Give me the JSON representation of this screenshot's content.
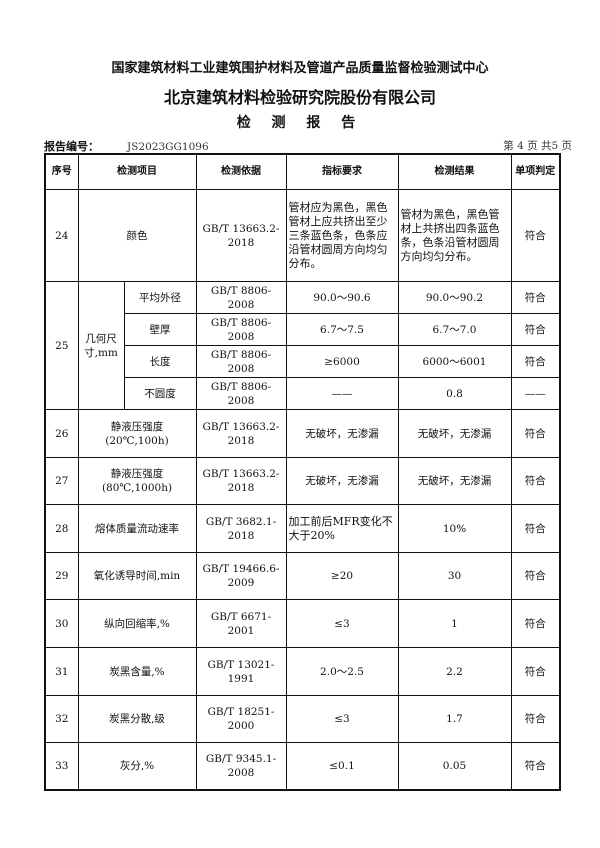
{
  "header": {
    "org": "国家建筑材料工业建筑围护材料及管道产品质量监督检验测试中心",
    "company": "北京建筑材料检验研究院股份有限公司",
    "doc_title": "检 测 报 告",
    "report_label": "报告编号：",
    "report_no": "JS2023GG1096",
    "page_info": "第 4 页 共5 页"
  },
  "columns": [
    "序号",
    "检测项目",
    "检测依据",
    "指标要求",
    "检测结果",
    "单项判定"
  ],
  "rows": [
    {
      "no": "24",
      "item": "颜色",
      "basis": "GB/T 13663.2-2018",
      "req": "管材应为黑色，黑色管材上应共挤出至少三条蓝色条，色条应沿管材圆周方向均匀分布。",
      "result": "管材为黑色，黑色管材上共挤出四条蓝色条，色条沿管材圆周方向均匀分布。",
      "verdict": "符合"
    },
    {
      "no": "25",
      "item": "几何尺寸,mm",
      "sub": [
        {
          "item": "平均外径",
          "basis": "GB/T 8806-2008",
          "req": "90.0～90.6",
          "result": "90.0～90.2",
          "verdict": "符合"
        },
        {
          "item": "壁厚",
          "basis": "GB/T 8806-2008",
          "req": "6.7～7.5",
          "result": "6.7～7.0",
          "verdict": "符合"
        },
        {
          "item": "长度",
          "basis": "GB/T 8806-2008",
          "req": "≥6000",
          "result": "6000～6001",
          "verdict": "符合"
        },
        {
          "item": "不圆度",
          "basis": "GB/T 8806-2008",
          "req": "——",
          "result": "0.8",
          "verdict": "——"
        }
      ]
    },
    {
      "no": "26",
      "item": "静液压强度(20℃,100h)",
      "basis": "GB/T 13663.2-2018",
      "req": "无破坏，无渗漏",
      "result": "无破坏，无渗漏",
      "verdict": "符合"
    },
    {
      "no": "27",
      "item": "静液压强度(80℃,1000h)",
      "basis": "GB/T 13663.2-2018",
      "req": "无破坏，无渗漏",
      "result": "无破坏，无渗漏",
      "verdict": "符合"
    },
    {
      "no": "28",
      "item": "熔体质量流动速率",
      "basis": "GB/T 3682.1-2018",
      "req": "加工前后MFR变化不大于20%",
      "result": "10%",
      "verdict": "符合"
    },
    {
      "no": "29",
      "item": "氧化诱导时间,min",
      "basis": "GB/T 19466.6-2009",
      "req": "≥20",
      "result": "30",
      "verdict": "符合"
    },
    {
      "no": "30",
      "item": "纵向回缩率,%",
      "basis": "GB/T 6671-2001",
      "req": "≤3",
      "result": "1",
      "verdict": "符合"
    },
    {
      "no": "31",
      "item": "炭黑含量,%",
      "basis": "GB/T 13021-1991",
      "req": "2.0～2.5",
      "result": "2.2",
      "verdict": "符合"
    },
    {
      "no": "32",
      "item": "炭黑分散,级",
      "basis": "GB/T 18251-2000",
      "req": "≤3",
      "result": "1.7",
      "verdict": "符合"
    },
    {
      "no": "33",
      "item": "灰分,%",
      "basis": "GB/T 9345.1-2008",
      "req": "≤0.1",
      "result": "0.05",
      "verdict": "符合"
    }
  ]
}
